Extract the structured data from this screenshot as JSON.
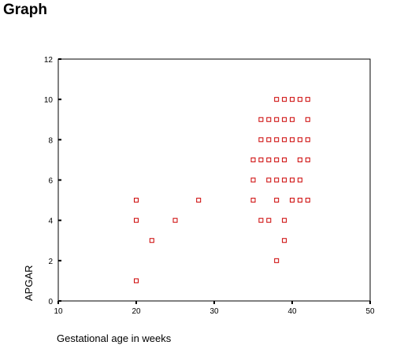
{
  "header": {
    "title": "Graph"
  },
  "chart_data": {
    "type": "scatter",
    "xlabel": "Gestational age in weeks",
    "ylabel": "APGAR",
    "xlim": [
      10,
      50
    ],
    "ylim": [
      0,
      12
    ],
    "x_ticks": [
      10,
      20,
      30,
      40,
      50
    ],
    "y_ticks": [
      0,
      2,
      4,
      6,
      8,
      10,
      12
    ],
    "grid": false,
    "marker": "hollow-square",
    "marker_color": "#cc0000",
    "points": [
      {
        "x": 20,
        "y": 1
      },
      {
        "x": 20,
        "y": 4
      },
      {
        "x": 20,
        "y": 5
      },
      {
        "x": 22,
        "y": 3
      },
      {
        "x": 25,
        "y": 4
      },
      {
        "x": 28,
        "y": 5
      },
      {
        "x": 35,
        "y": 5
      },
      {
        "x": 35,
        "y": 6
      },
      {
        "x": 35,
        "y": 7
      },
      {
        "x": 36,
        "y": 4
      },
      {
        "x": 36,
        "y": 7
      },
      {
        "x": 36,
        "y": 8
      },
      {
        "x": 36,
        "y": 9
      },
      {
        "x": 37,
        "y": 4
      },
      {
        "x": 37,
        "y": 6
      },
      {
        "x": 37,
        "y": 7
      },
      {
        "x": 37,
        "y": 8
      },
      {
        "x": 37,
        "y": 9
      },
      {
        "x": 38,
        "y": 2
      },
      {
        "x": 38,
        "y": 5
      },
      {
        "x": 38,
        "y": 6
      },
      {
        "x": 38,
        "y": 7
      },
      {
        "x": 38,
        "y": 8
      },
      {
        "x": 38,
        "y": 9
      },
      {
        "x": 38,
        "y": 10
      },
      {
        "x": 39,
        "y": 3
      },
      {
        "x": 39,
        "y": 4
      },
      {
        "x": 39,
        "y": 6
      },
      {
        "x": 39,
        "y": 7
      },
      {
        "x": 39,
        "y": 8
      },
      {
        "x": 39,
        "y": 9
      },
      {
        "x": 39,
        "y": 10
      },
      {
        "x": 40,
        "y": 5
      },
      {
        "x": 40,
        "y": 6
      },
      {
        "x": 40,
        "y": 8
      },
      {
        "x": 40,
        "y": 9
      },
      {
        "x": 40,
        "y": 10
      },
      {
        "x": 41,
        "y": 5
      },
      {
        "x": 41,
        "y": 6
      },
      {
        "x": 41,
        "y": 7
      },
      {
        "x": 41,
        "y": 8
      },
      {
        "x": 41,
        "y": 10
      },
      {
        "x": 42,
        "y": 5
      },
      {
        "x": 42,
        "y": 7
      },
      {
        "x": 42,
        "y": 8
      },
      {
        "x": 42,
        "y": 9
      },
      {
        "x": 42,
        "y": 10
      }
    ]
  }
}
